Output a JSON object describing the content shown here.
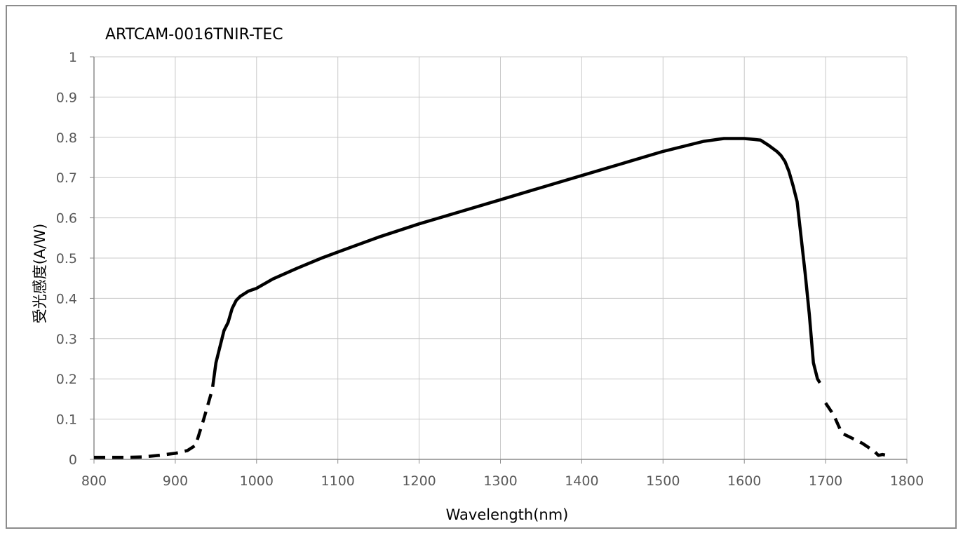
{
  "chart_data": {
    "type": "line",
    "title": "ARTCAM-0016TNIR-TEC",
    "xlabel": "Wavelength(nm)",
    "ylabel": "受光感度(A/W)",
    "xlim": [
      800,
      1800
    ],
    "ylim": [
      0,
      1
    ],
    "x_ticks": [
      "800",
      "900",
      "1000",
      "1100",
      "1200",
      "1300",
      "1400",
      "1500",
      "1600",
      "1700",
      "1800"
    ],
    "y_ticks": [
      "0",
      "0.1",
      "0.2",
      "0.3",
      "0.4",
      "0.5",
      "0.6",
      "0.7",
      "0.8",
      "0.9",
      "1"
    ],
    "grid": true,
    "legend": "none",
    "line_color": "#000000",
    "series": [
      {
        "style": "dashed",
        "x": [
          800,
          820,
          840,
          860,
          880,
          900,
          915,
          925,
          935,
          945
        ],
        "y": [
          0.005,
          0.005,
          0.005,
          0.006,
          0.01,
          0.015,
          0.022,
          0.035,
          0.1,
          0.17
        ]
      },
      {
        "style": "solid",
        "x": [
          946,
          950,
          955,
          960,
          965,
          970,
          975,
          980,
          990,
          1000,
          1020,
          1050,
          1080,
          1100,
          1150,
          1200,
          1250,
          1300,
          1350,
          1400,
          1450,
          1500,
          1550,
          1575,
          1600,
          1620,
          1630,
          1640,
          1645,
          1650,
          1655,
          1660,
          1665,
          1670,
          1675,
          1680,
          1685,
          1690,
          1693
        ],
        "y": [
          0.18,
          0.24,
          0.28,
          0.32,
          0.34,
          0.375,
          0.395,
          0.405,
          0.418,
          0.425,
          0.448,
          0.475,
          0.5,
          0.515,
          0.552,
          0.585,
          0.615,
          0.645,
          0.675,
          0.705,
          0.735,
          0.765,
          0.79,
          0.797,
          0.797,
          0.793,
          0.78,
          0.765,
          0.755,
          0.74,
          0.715,
          0.68,
          0.64,
          0.55,
          0.46,
          0.36,
          0.24,
          0.2,
          0.19
        ]
      },
      {
        "style": "dashed",
        "x": [
          1700,
          1710,
          1720,
          1730,
          1745,
          1760,
          1765,
          1770,
          1775
        ],
        "y": [
          0.14,
          0.11,
          0.065,
          0.055,
          0.04,
          0.02,
          0.01,
          0.012,
          0.01
        ]
      }
    ]
  }
}
